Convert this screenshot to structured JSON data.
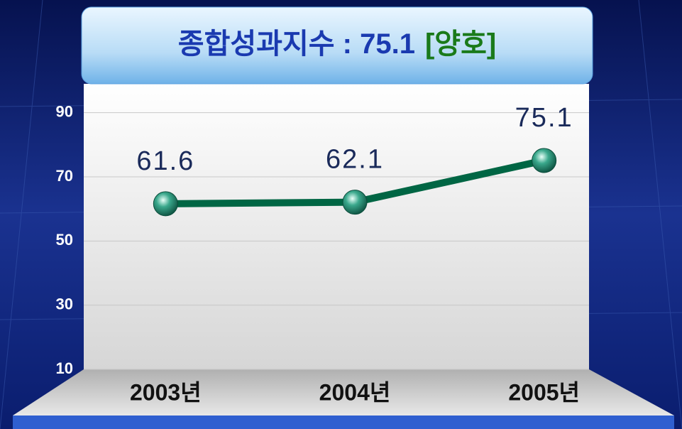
{
  "chart_data": {
    "type": "line",
    "title": "종합성과지수 : 75.1",
    "title_status": "[양호]",
    "categories": [
      "2003년",
      "2004년",
      "2005년"
    ],
    "series": [
      {
        "name": null,
        "color": "#006644",
        "values": [
          61.6,
          62.1,
          75.1
        ]
      }
    ],
    "ylim": [
      10,
      99
    ],
    "yticks": [
      10,
      30,
      50,
      70,
      90
    ],
    "grid": true
  }
}
